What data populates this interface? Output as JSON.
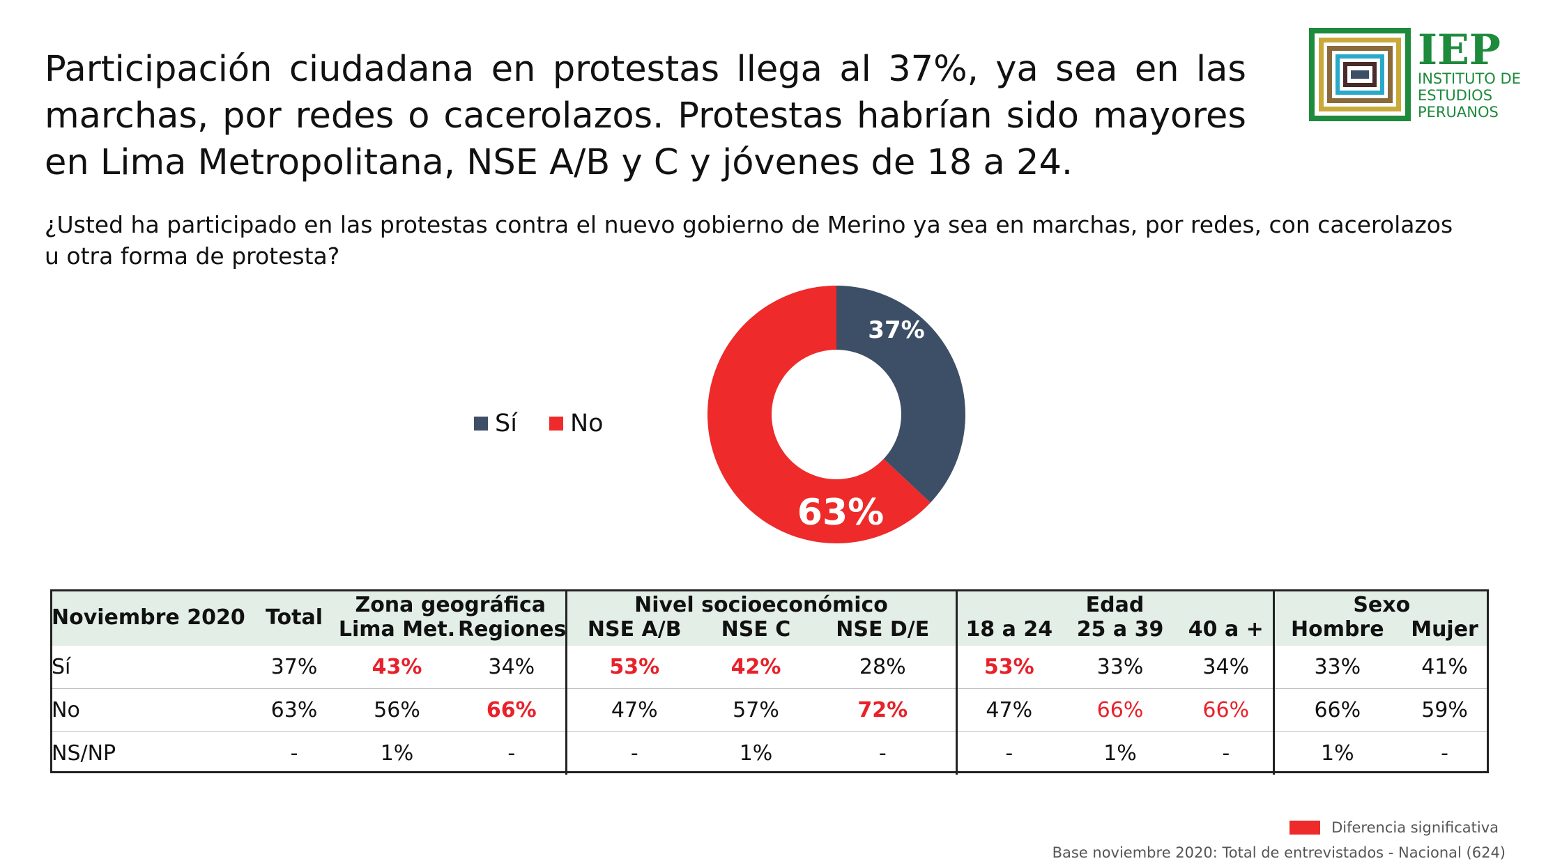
{
  "title": "Participación ciudadana en protestas llega al 37%, ya sea en las marchas, por redes o cacerolazos. Protestas habrían sido mayores en Lima Metropolitana, NSE A/B y C y jóvenes de 18 a 24.",
  "question": "¿Usted ha participado en las protestas contra el nuevo gobierno de Merino ya sea en marchas, por redes, con cacerolazos u otra forma de protesta?",
  "logo": {
    "acronym": "IEP",
    "line1": "INSTITUTO DE",
    "line2": "ESTUDIOS",
    "line3": "PERUANOS",
    "color": "#1d8a3c"
  },
  "colors": {
    "si": "#3d4f66",
    "no": "#ee2a2a",
    "highlight": "#e8212b",
    "header_bg": "#e2eee6"
  },
  "chart_data": {
    "type": "pie",
    "variant": "donut",
    "categories": [
      "Sí",
      "No"
    ],
    "values": [
      37,
      63
    ],
    "labels": [
      "37%",
      "63%"
    ],
    "legend": [
      "Sí",
      "No"
    ],
    "legend_position": "left"
  },
  "table": {
    "corner_label": "Noviembre 2020",
    "total_label": "Total",
    "groups": [
      {
        "label": "Zona geográfica",
        "columns": [
          "Lima Met.",
          "Regiones"
        ]
      },
      {
        "label": "Nivel socioeconómico",
        "columns": [
          "NSE A/B",
          "NSE C",
          "NSE D/E"
        ]
      },
      {
        "label": "Edad",
        "columns": [
          "18 a 24",
          "25 a 39",
          "40 a +"
        ]
      },
      {
        "label": "Sexo",
        "columns": [
          "Hombre",
          "Mujer"
        ]
      }
    ],
    "rows": [
      {
        "label": "Sí",
        "values": [
          "37%",
          "43%",
          "34%",
          "53%",
          "42%",
          "28%",
          "53%",
          "33%",
          "34%",
          "33%",
          "41%"
        ]
      },
      {
        "label": "No",
        "values": [
          "63%",
          "56%",
          "66%",
          "47%",
          "57%",
          "72%",
          "47%",
          "66%",
          "66%",
          "66%",
          "59%"
        ]
      },
      {
        "label": "NS/NP",
        "values": [
          "-",
          "1%",
          "-",
          "-",
          "1%",
          "-",
          "-",
          "1%",
          "-",
          "1%",
          "-"
        ]
      }
    ]
  },
  "significance_legend": "Diferencia significativa",
  "base_note": "Base noviembre 2020: Total de entrevistados - Nacional (624)"
}
